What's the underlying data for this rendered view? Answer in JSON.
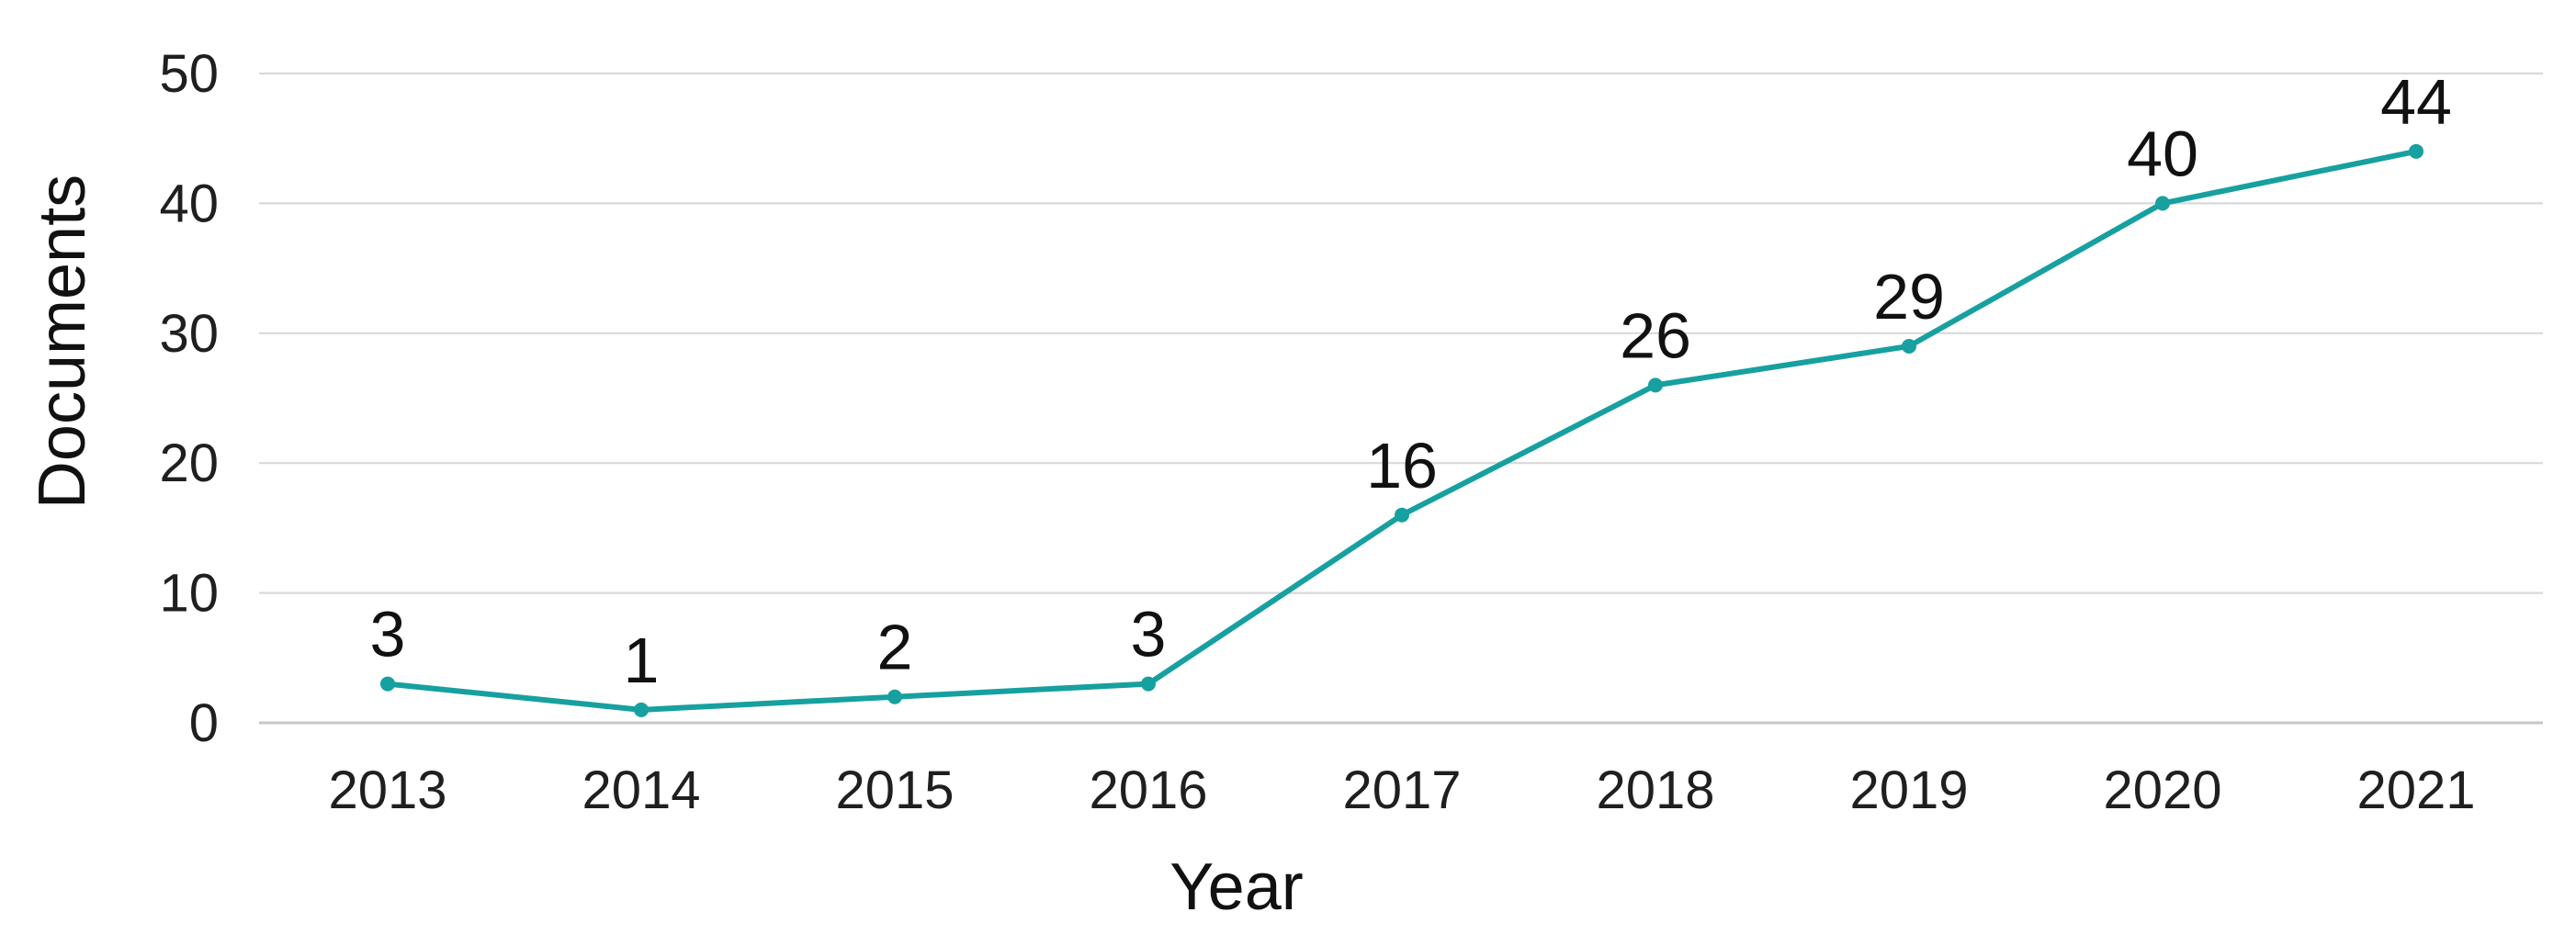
{
  "colors": {
    "series": "#17a0a0",
    "grid": "#d9d9d9",
    "text": "#111111"
  },
  "chart_data": {
    "type": "line",
    "title": "",
    "xlabel": "Year",
    "ylabel": "Documents",
    "x": [
      "2013",
      "2014",
      "2015",
      "2016",
      "2017",
      "2018",
      "2019",
      "2020",
      "2021"
    ],
    "ylim": [
      0,
      50
    ],
    "yticks": [
      0,
      10,
      20,
      30,
      40,
      50
    ],
    "grid": true,
    "legend": "none",
    "series": [
      {
        "values": [
          3,
          1,
          2,
          3,
          16,
          26,
          29,
          40,
          44
        ],
        "data_labels": [
          "3",
          "1",
          "2",
          "3",
          "16",
          "26",
          "29",
          "40",
          "44"
        ]
      }
    ]
  }
}
